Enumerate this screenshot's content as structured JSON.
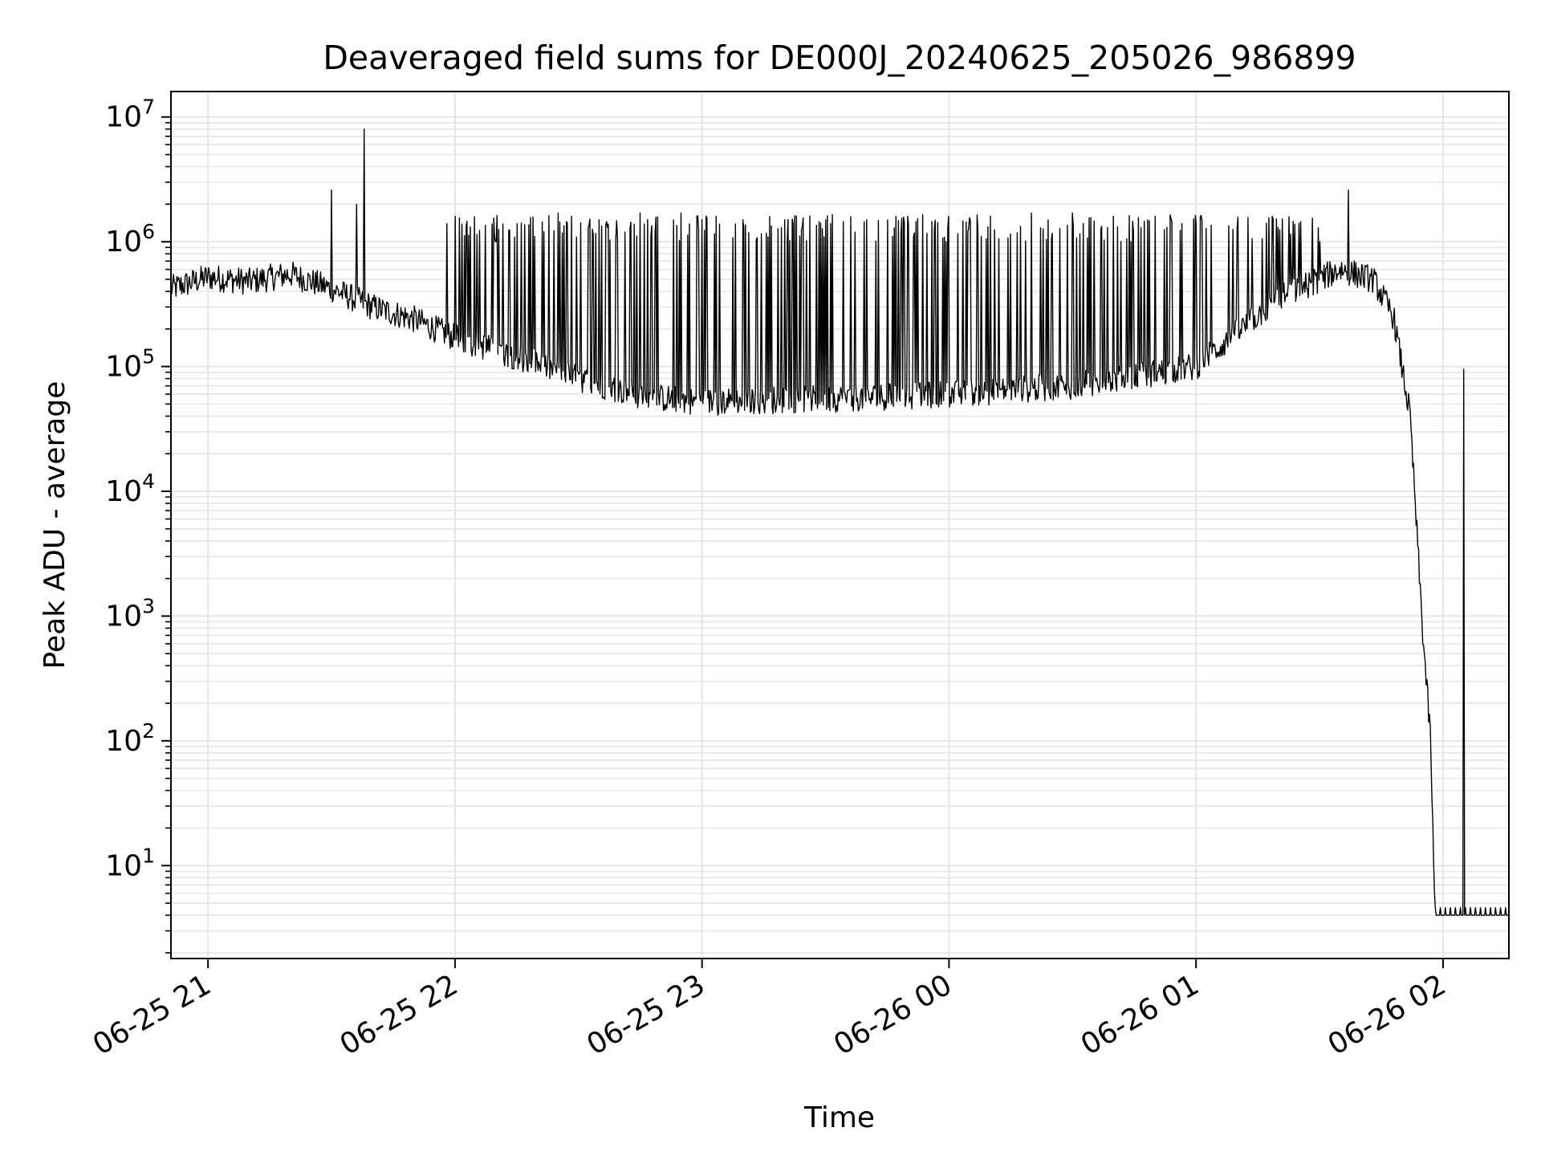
{
  "chart_data": {
    "type": "line",
    "title": "Deaveraged field sums for DE000J_20240625_205026_986899",
    "xlabel": "Time",
    "ylabel": "Peak ADU - average",
    "yscale": "log",
    "ylim": [
      1.8,
      16000000
    ],
    "xlim": [
      "2024-06-25 20:51",
      "2024-06-26 02:16"
    ],
    "grid": true,
    "line_color": "#000000",
    "grid_color": "#e6e6e6",
    "x_ticks": [
      {
        "t": "2024-06-25 21:00",
        "label": "06-25 21"
      },
      {
        "t": "2024-06-25 22:00",
        "label": "06-25 22"
      },
      {
        "t": "2024-06-25 23:00",
        "label": "06-25 23"
      },
      {
        "t": "2024-06-26 00:00",
        "label": "06-26 00"
      },
      {
        "t": "2024-06-26 01:00",
        "label": "06-26 01"
      },
      {
        "t": "2024-06-26 02:00",
        "label": "06-26 02"
      }
    ],
    "y_ticks": [
      {
        "value": 10,
        "base": "10",
        "exp": "1"
      },
      {
        "value": 100,
        "base": "10",
        "exp": "2"
      },
      {
        "value": 1000,
        "base": "10",
        "exp": "3"
      },
      {
        "value": 10000,
        "base": "10",
        "exp": "4"
      },
      {
        "value": 100000,
        "base": "10",
        "exp": "5"
      },
      {
        "value": 1000000,
        "base": "10",
        "exp": "6"
      },
      {
        "value": 10000000,
        "base": "10",
        "exp": "7"
      }
    ],
    "series": [
      {
        "baseline": [
          [
            "2024-06-25 20:51",
            420000
          ],
          [
            "2024-06-25 21:00",
            520000
          ],
          [
            "2024-06-25 21:10",
            480000
          ],
          [
            "2024-06-25 21:20",
            550000
          ],
          [
            "2024-06-25 21:30",
            420000
          ],
          [
            "2024-06-25 21:40",
            300000
          ],
          [
            "2024-06-25 21:50",
            240000
          ],
          [
            "2024-06-25 22:00",
            170000
          ],
          [
            "2024-06-25 22:15",
            120000
          ],
          [
            "2024-06-25 22:30",
            80000
          ],
          [
            "2024-06-25 22:45",
            58000
          ],
          [
            "2024-06-25 23:00",
            52000
          ],
          [
            "2024-06-25 23:30",
            55000
          ],
          [
            "2024-06-26 00:00",
            60000
          ],
          [
            "2024-06-26 00:30",
            70000
          ],
          [
            "2024-06-26 01:00",
            100000
          ],
          [
            "2024-06-26 01:20",
            350000
          ],
          [
            "2024-06-26 01:35",
            600000
          ],
          [
            "2024-06-26 01:43",
            500000
          ],
          [
            "2024-06-26 01:48",
            250000
          ],
          [
            "2024-06-26 01:52",
            40000
          ],
          [
            "2024-06-26 01:55",
            800
          ],
          [
            "2024-06-26 01:57",
            100
          ],
          [
            "2024-06-26 01:58",
            4
          ],
          [
            "2024-06-26 02:16",
            4
          ]
        ],
        "peaks": [
          [
            "2024-06-25 21:30",
            2600000
          ],
          [
            "2024-06-25 21:38",
            8000000
          ],
          [
            "2024-06-25 21:36",
            2000000
          ],
          [
            "2024-06-25 21:58",
            1400000
          ],
          [
            "2024-06-25 22:10",
            1000000
          ],
          [
            "2024-06-25 22:15",
            1400000
          ],
          [
            "2024-06-25 22:25",
            1700000
          ],
          [
            "2024-06-25 22:35",
            1500000
          ],
          [
            "2024-06-25 22:45",
            1700000
          ],
          [
            "2024-06-25 22:55",
            1700000
          ],
          [
            "2024-06-25 23:00",
            1500000
          ],
          [
            "2024-06-25 23:10",
            1500000
          ],
          [
            "2024-06-25 23:20",
            1500000
          ],
          [
            "2024-06-25 23:30",
            1500000
          ],
          [
            "2024-06-25 23:40",
            1500000
          ],
          [
            "2024-06-25 23:50",
            1600000
          ],
          [
            "2024-06-26 00:00",
            1600000
          ],
          [
            "2024-06-26 00:10",
            1600000
          ],
          [
            "2024-06-26 00:20",
            1700000
          ],
          [
            "2024-06-26 00:30",
            1700000
          ],
          [
            "2024-06-26 00:40",
            1600000
          ],
          [
            "2024-06-26 00:50",
            1600000
          ],
          [
            "2024-06-26 01:00",
            1400000
          ],
          [
            "2024-06-26 01:10",
            1300000
          ],
          [
            "2024-06-26 01:20",
            1300000
          ],
          [
            "2024-06-26 01:30",
            1000000
          ],
          [
            "2024-06-26 01:37",
            2600000
          ],
          [
            "2024-06-26 02:05",
            95000
          ]
        ]
      }
    ]
  }
}
